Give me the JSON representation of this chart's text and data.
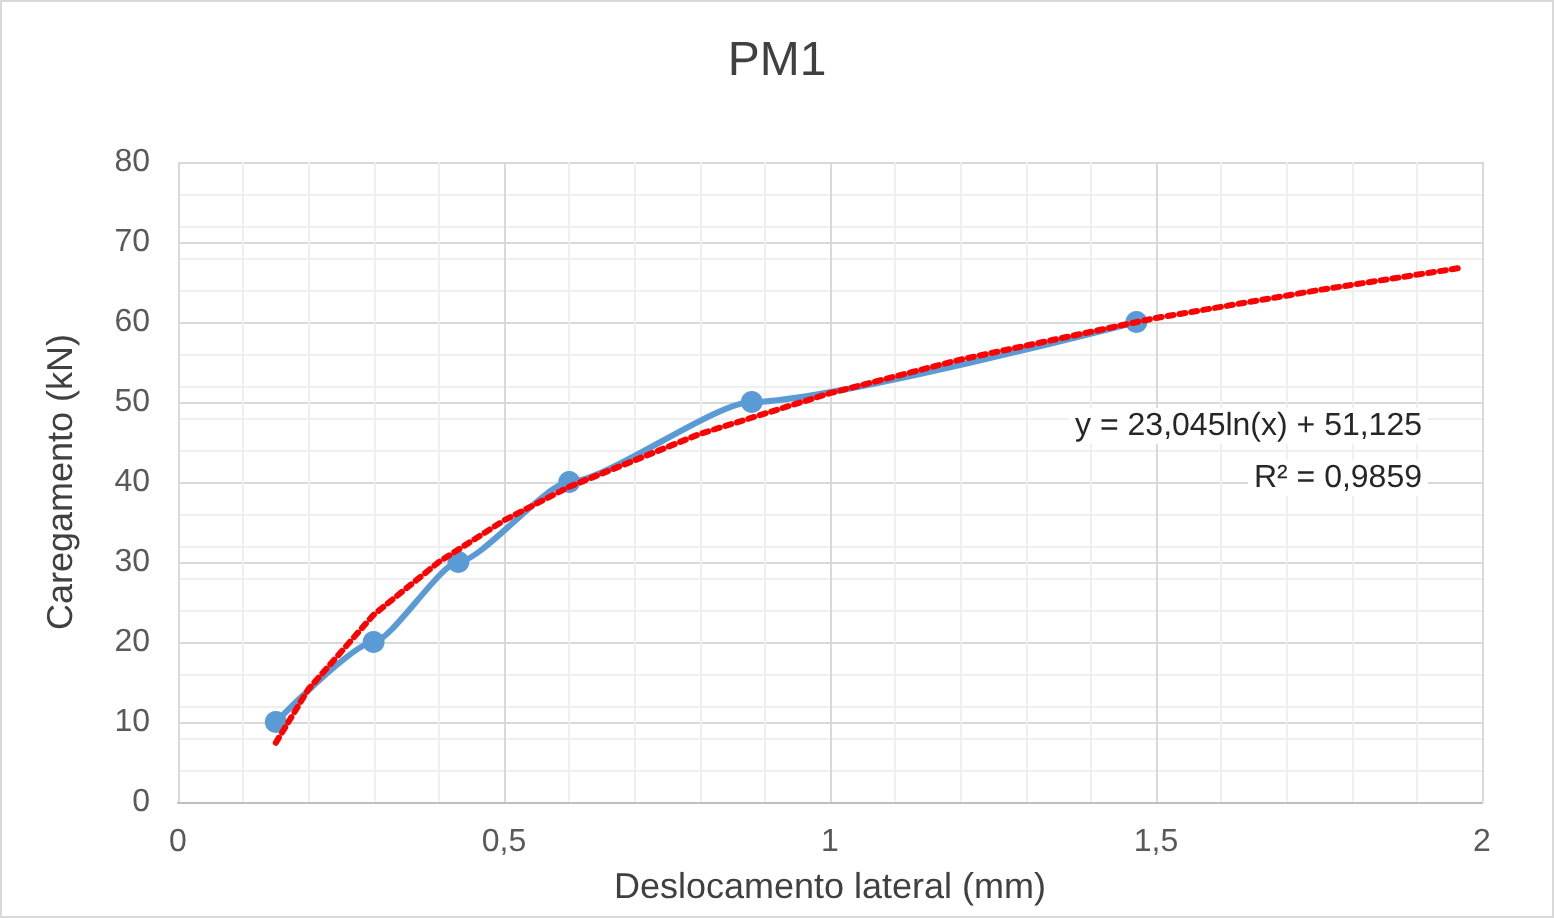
{
  "chart_data": {
    "type": "line",
    "title": "PM1",
    "xlabel": "Deslocamento lateral (mm)",
    "ylabel": "Caregamento (kN)",
    "xlim": [
      0,
      2
    ],
    "xticks": [
      {
        "value": 0,
        "label": "0"
      },
      {
        "value": 0.5,
        "label": "0,5"
      },
      {
        "value": 1,
        "label": "1"
      },
      {
        "value": 1.5,
        "label": "1,5"
      },
      {
        "value": 2,
        "label": "2"
      }
    ],
    "ylim": [
      0,
      80
    ],
    "yticks": [
      0,
      10,
      20,
      30,
      40,
      50,
      60,
      70,
      80
    ],
    "grid": true,
    "marker": "circle",
    "line_style": "solid",
    "series": [
      {
        "color": "#5b9bd5",
        "x": [
          0.15,
          0.3,
          0.43,
          0.6,
          0.88,
          1.47
        ],
        "values": [
          10,
          20,
          30,
          40,
          50,
          60
        ]
      },
      {
        "type": "line",
        "color": "#ff0000",
        "marker": "none",
        "line_style": "dotted",
        "x": [
          0.15,
          0.2,
          0.3,
          0.4,
          0.5,
          0.6,
          0.8,
          1,
          1.2,
          1.5,
          1.75,
          1.97
        ],
        "values": [
          7.4,
          14.1,
          23.4,
          30,
          35.2,
          39.4,
          46,
          51.1,
          55.3,
          60.5,
          64,
          66.8
        ]
      }
    ],
    "annotations": [
      "y = 23,045ln(x) + 51,125",
      "R² = 0,9859"
    ]
  }
}
